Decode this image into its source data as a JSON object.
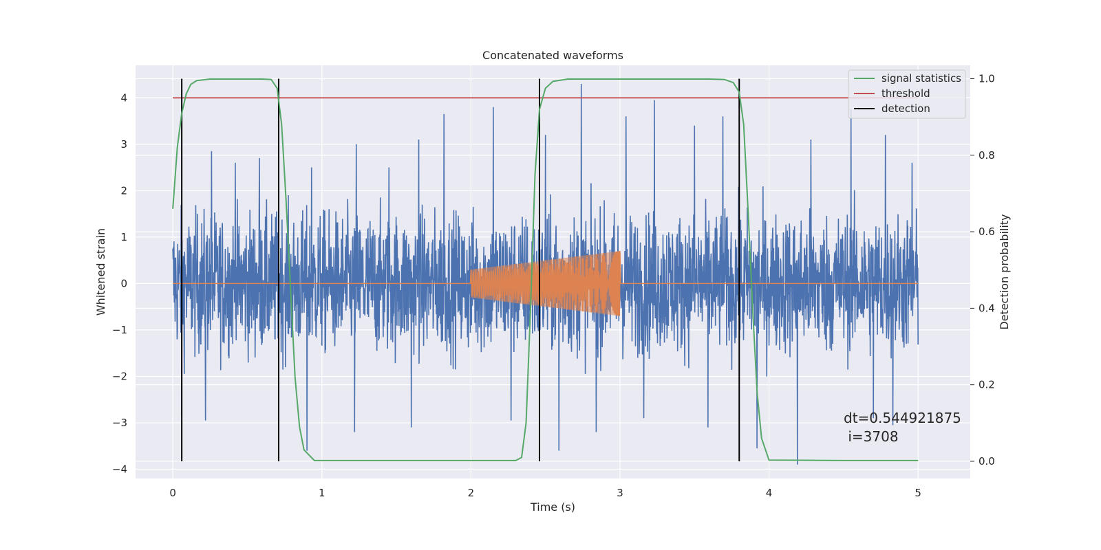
{
  "chart_data": {
    "type": "line",
    "title": "Concatenated waveforms",
    "xlabel": "Time (s)",
    "ylabel": "Whitened strain",
    "ylabel_right": "Detection probability",
    "xlim": [
      -0.25,
      5.35
    ],
    "ylim": [
      -4.2,
      4.7
    ],
    "ylim_right": [
      -0.045,
      1.035
    ],
    "x_ticks": [
      {
        "value": 0,
        "label": "0"
      },
      {
        "value": 1,
        "label": "1"
      },
      {
        "value": 2,
        "label": "2"
      },
      {
        "value": 3,
        "label": "3"
      },
      {
        "value": 4,
        "label": "4"
      },
      {
        "value": 5,
        "label": "5"
      }
    ],
    "y_ticks": [
      {
        "value": 4,
        "label": "4"
      },
      {
        "value": 3,
        "label": "3"
      },
      {
        "value": 2,
        "label": "2"
      },
      {
        "value": 1,
        "label": "1"
      },
      {
        "value": 0,
        "label": "0"
      },
      {
        "value": -1,
        "label": "−1"
      },
      {
        "value": -2,
        "label": "−2"
      },
      {
        "value": -3,
        "label": "−3"
      },
      {
        "value": -4,
        "label": "−4"
      }
    ],
    "y_right_ticks": [
      {
        "value": 1.0,
        "label": "1.0"
      },
      {
        "value": 0.8,
        "label": "0.8"
      },
      {
        "value": 0.6,
        "label": "0.6"
      },
      {
        "value": 0.4,
        "label": "0.4"
      },
      {
        "value": 0.2,
        "label": "0.2"
      },
      {
        "value": 0.0,
        "label": "0.0"
      }
    ],
    "grid": true,
    "legend_position": "top-right",
    "legend": [
      {
        "name": "signal statistics",
        "color": "#55a868"
      },
      {
        "name": "threshold",
        "color": "#c44e52"
      },
      {
        "name": "detection",
        "color": "#000000"
      }
    ],
    "series": [
      {
        "role": "strain",
        "color": "#4c72b0",
        "description_points": "noise between approx -2.6 and 2.6 with spikes",
        "x_range": [
          0,
          5
        ],
        "amplitude_typical": 1.6,
        "spikes": [
          {
            "x": 0.26,
            "y": 2.85
          },
          {
            "x": 0.42,
            "y": 2.6
          },
          {
            "x": 0.58,
            "y": 2.7
          },
          {
            "x": 0.93,
            "y": 2.5
          },
          {
            "x": 1.23,
            "y": 3.0
          },
          {
            "x": 1.45,
            "y": 2.5
          },
          {
            "x": 1.65,
            "y": 3.1
          },
          {
            "x": 1.82,
            "y": 3.65
          },
          {
            "x": 2.15,
            "y": 3.8
          },
          {
            "x": 2.5,
            "y": 3.2
          },
          {
            "x": 2.74,
            "y": 4.3
          },
          {
            "x": 3.04,
            "y": 3.6
          },
          {
            "x": 3.23,
            "y": 3.95
          },
          {
            "x": 3.5,
            "y": 3.4
          },
          {
            "x": 3.69,
            "y": 3.6
          },
          {
            "x": 4.28,
            "y": 3.1
          },
          {
            "x": 4.55,
            "y": 3.75
          },
          {
            "x": 4.78,
            "y": 3.2
          },
          {
            "x": 4.96,
            "y": 2.6
          },
          {
            "x": 0.06,
            "y": -2.85
          },
          {
            "x": 0.22,
            "y": -2.95
          },
          {
            "x": 0.9,
            "y": -3.6
          },
          {
            "x": 1.22,
            "y": -3.2
          },
          {
            "x": 1.6,
            "y": -3.1
          },
          {
            "x": 2.27,
            "y": -2.95
          },
          {
            "x": 2.59,
            "y": -3.6
          },
          {
            "x": 2.84,
            "y": -3.2
          },
          {
            "x": 3.16,
            "y": -2.9
          },
          {
            "x": 3.59,
            "y": -3.1
          },
          {
            "x": 3.92,
            "y": -3.55
          },
          {
            "x": 4.19,
            "y": -3.9
          },
          {
            "x": 4.7,
            "y": -2.9
          },
          {
            "x": 4.83,
            "y": -3.05
          }
        ]
      },
      {
        "role": "injection",
        "color": "#dd8452",
        "x_range": [
          0,
          5
        ],
        "chirp_start": 2.0,
        "chirp_end": 3.0,
        "amp_start": 0.3,
        "amp_end": 0.7
      },
      {
        "name": "signal statistics",
        "axis": "right",
        "color": "#55a868",
        "x": [
          0.0,
          0.03,
          0.06,
          0.09,
          0.12,
          0.16,
          0.25,
          0.6,
          0.66,
          0.7,
          0.73,
          0.76,
          0.79,
          0.82,
          0.85,
          0.88,
          0.95,
          1.5,
          2.3,
          2.34,
          2.37,
          2.4,
          2.43,
          2.46,
          2.5,
          2.55,
          2.65,
          3.6,
          3.7,
          3.76,
          3.8,
          3.83,
          3.86,
          3.89,
          3.92,
          3.95,
          4.0,
          4.5,
          5.0
        ],
        "y": [
          0.66,
          0.82,
          0.91,
          0.96,
          0.985,
          0.995,
          0.999,
          0.999,
          0.998,
          0.975,
          0.88,
          0.68,
          0.45,
          0.22,
          0.09,
          0.03,
          0.002,
          0.002,
          0.002,
          0.01,
          0.1,
          0.4,
          0.75,
          0.92,
          0.975,
          0.993,
          0.999,
          0.999,
          0.998,
          0.99,
          0.965,
          0.88,
          0.65,
          0.4,
          0.18,
          0.06,
          0.003,
          0.002,
          0.002
        ]
      },
      {
        "name": "threshold",
        "axis": "right",
        "color": "#c44e52",
        "x": [
          0,
          5
        ],
        "y": [
          0.95,
          0.95
        ]
      }
    ],
    "detections": {
      "color": "#000000",
      "x": [
        0.06,
        0.71,
        2.46,
        3.8
      ],
      "ymin": 0.0,
      "ymax": 1.0
    },
    "annotation": {
      "line1": "dt=0.544921875",
      "line2": " i=3708"
    }
  }
}
